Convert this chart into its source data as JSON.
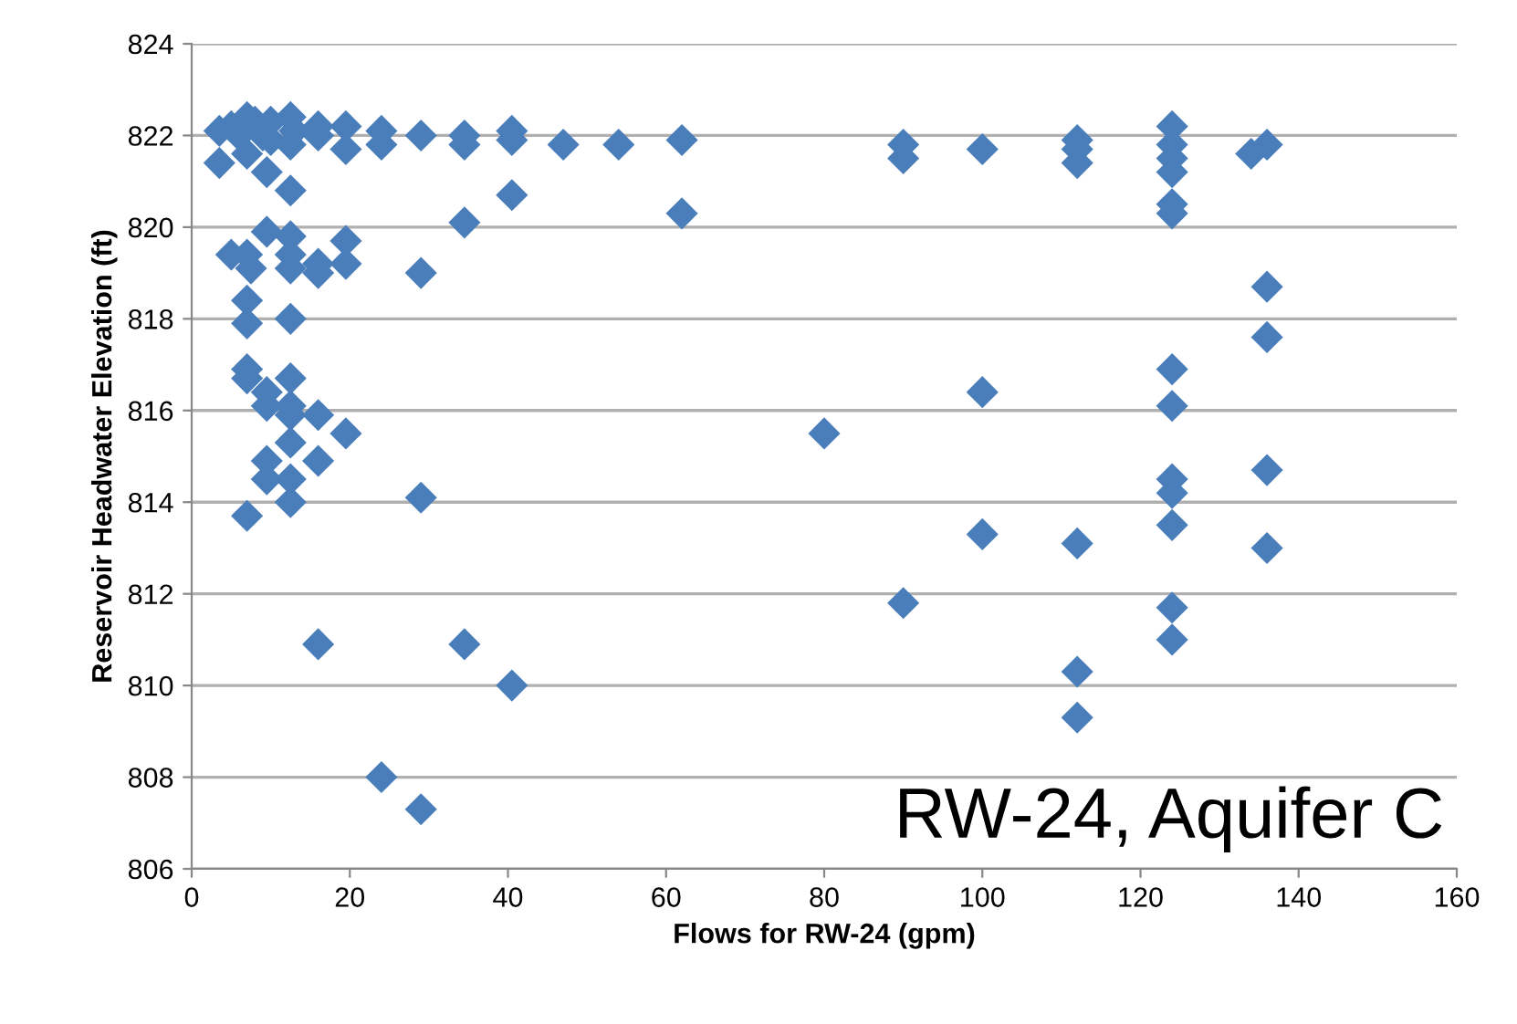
{
  "chart_data": {
    "type": "scatter",
    "xlabel": "Flows for RW-24 (gpm)",
    "ylabel": "Reservoir Headwater Elevation (ft)",
    "annotations": [
      "RW-24, Aquifer C"
    ],
    "x": [
      3.5,
      5,
      6,
      7,
      7,
      8,
      9,
      10,
      10,
      12.5,
      12.5,
      13,
      16,
      16,
      19.5,
      19.5,
      24,
      24,
      29,
      34.5,
      34.5,
      40.5,
      40.5,
      47,
      54,
      62,
      90,
      90,
      100,
      112,
      112,
      112,
      124,
      124,
      124,
      124,
      124,
      124,
      134,
      136,
      3.5,
      9.5,
      12.5,
      34.5,
      40.5,
      62,
      5,
      7,
      7.5,
      9.5,
      12.5,
      12.5,
      12.5,
      16,
      16,
      19.5,
      19.5,
      29,
      7,
      7,
      12.5,
      7,
      7,
      9.5,
      9.5,
      12.5,
      12.5,
      12.5,
      16,
      12.5,
      19.5,
      9.5,
      9.5,
      12.5,
      16,
      12.5,
      7,
      29,
      16,
      34.5,
      40.5,
      24,
      29,
      80,
      100,
      100,
      90,
      112,
      112,
      112,
      124,
      124,
      124,
      124,
      124,
      124,
      124,
      136,
      136,
      136,
      136
    ],
    "series": [
      {
        "color": "#4a7ebb",
        "values": [
          822.1,
          822.2,
          822.0,
          822.4,
          821.6,
          822.3,
          822.0,
          822.3,
          821.9,
          822.4,
          821.8,
          822.1,
          822.2,
          822.0,
          822.2,
          821.7,
          822.1,
          821.8,
          822.0,
          822.0,
          821.8,
          822.1,
          821.9,
          821.8,
          821.8,
          821.9,
          821.8,
          821.5,
          821.7,
          821.9,
          821.7,
          821.4,
          822.2,
          821.8,
          821.5,
          821.2,
          820.5,
          820.3,
          821.6,
          821.8,
          821.4,
          821.2,
          820.8,
          820.1,
          820.7,
          820.3,
          819.4,
          819.4,
          819.1,
          819.9,
          819.8,
          819.4,
          819.1,
          819.2,
          819.0,
          819.7,
          819.2,
          819.0,
          818.4,
          817.9,
          818.0,
          816.9,
          816.7,
          816.4,
          816.1,
          816.7,
          815.9,
          816.1,
          815.9,
          815.3,
          815.5,
          814.9,
          814.5,
          814.5,
          814.9,
          814.0,
          813.7,
          814.1,
          810.9,
          810.9,
          810.0,
          808.0,
          807.3,
          815.5,
          816.4,
          813.3,
          811.8,
          813.1,
          810.3,
          809.3,
          816.9,
          816.1,
          814.5,
          814.2,
          813.5,
          811.7,
          811.0,
          818.7,
          817.6,
          814.7,
          813.0
        ]
      }
    ],
    "xlim": [
      0,
      160
    ],
    "xticks": [
      0,
      20,
      40,
      60,
      80,
      100,
      120,
      140,
      160
    ],
    "ylim": [
      806,
      824
    ],
    "yticks": [
      806,
      808,
      810,
      812,
      814,
      816,
      818,
      820,
      822,
      824
    ],
    "grid": "y",
    "marker": "diamond",
    "legend": false
  }
}
